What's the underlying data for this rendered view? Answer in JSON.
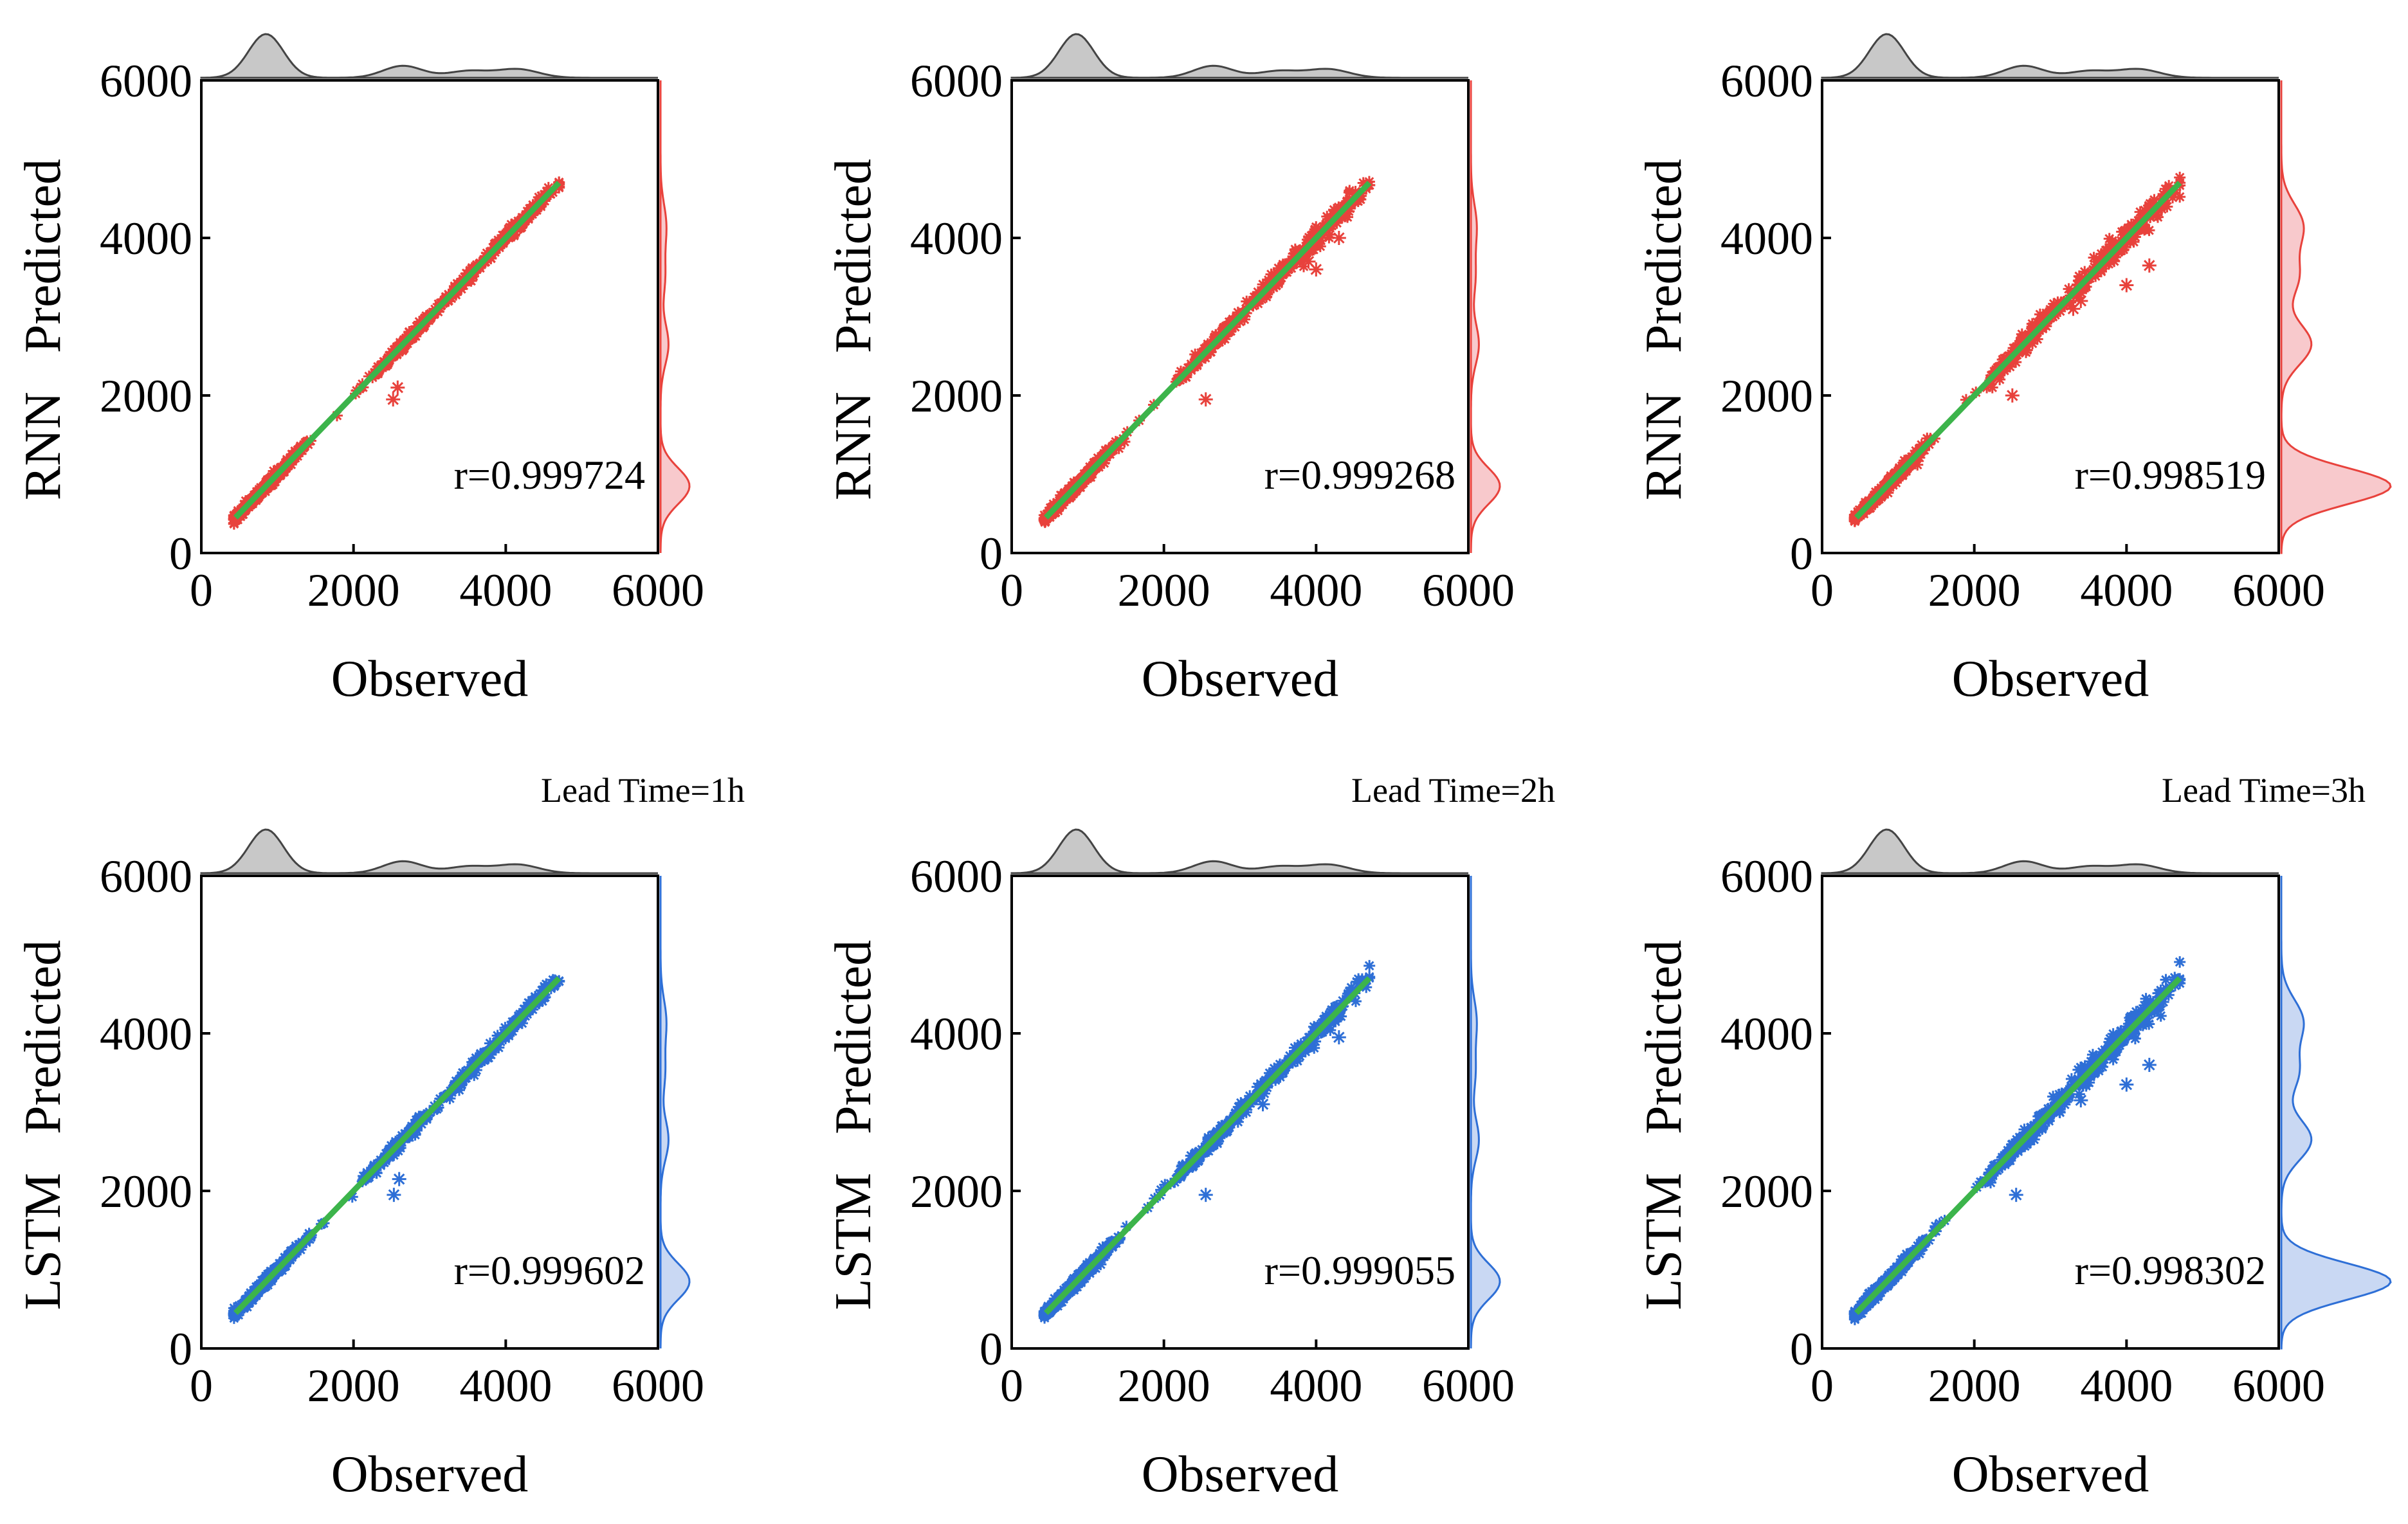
{
  "figure": {
    "rows": [
      {
        "model": "RNN",
        "point_color": "#e8423c",
        "density_color": "#e8423c",
        "density_fill": "#f8c9cc"
      },
      {
        "model": "LSTM",
        "point_color": "#2e6fd6",
        "density_color": "#2e6fd6",
        "density_fill": "#c9d8f3"
      }
    ],
    "fit_line_color": "#3cb44b",
    "top_density_color": "#444444",
    "top_density_fill": "#c8c8c8",
    "lead_time_labels": [
      "Lead Time=1h",
      "Lead Time=2h",
      "Lead Time=3h"
    ]
  },
  "chart_data": [
    {
      "type": "scatter",
      "row": 0,
      "col": 0,
      "model": "RNN",
      "ylabel_model": "RNN",
      "ylabel": "Predicted",
      "xlabel": "Observed",
      "xlim": [
        0,
        6000
      ],
      "ylim": [
        0,
        6000
      ],
      "xticks": [
        0,
        2000,
        4000,
        6000
      ],
      "yticks": [
        0,
        2000,
        4000,
        6000
      ],
      "annotation": "r=0.999724",
      "lead_label": "",
      "fit_line": [
        [
          450,
          450
        ],
        [
          4700,
          4700
        ]
      ],
      "observed_range": [
        450,
        4700
      ],
      "spread": 0.012,
      "outliers": [
        [
          2520,
          1950
        ],
        [
          2580,
          2100
        ]
      ]
    },
    {
      "type": "scatter",
      "row": 0,
      "col": 1,
      "model": "RNN",
      "ylabel_model": "RNN",
      "ylabel": "Predicted",
      "xlabel": "Observed",
      "xlim": [
        0,
        6000
      ],
      "ylim": [
        0,
        6000
      ],
      "xticks": [
        0,
        2000,
        4000,
        6000
      ],
      "yticks": [
        0,
        2000,
        4000,
        6000
      ],
      "annotation": "r=0.999268",
      "lead_label": "",
      "fit_line": [
        [
          450,
          450
        ],
        [
          4700,
          4700
        ]
      ],
      "observed_range": [
        450,
        4700
      ],
      "spread": 0.02,
      "outliers": [
        [
          2550,
          1950
        ],
        [
          4000,
          3600
        ],
        [
          4300,
          4000
        ],
        [
          3900,
          3700
        ]
      ]
    },
    {
      "type": "scatter",
      "row": 0,
      "col": 2,
      "model": "RNN",
      "ylabel_model": "RNN",
      "ylabel": "Predicted",
      "xlabel": "Observed",
      "xlim": [
        0,
        6000
      ],
      "ylim": [
        0,
        6000
      ],
      "xticks": [
        0,
        2000,
        4000,
        6000
      ],
      "yticks": [
        0,
        2000,
        4000,
        6000
      ],
      "annotation": "r=0.998519",
      "lead_label": "",
      "fit_line": [
        [
          450,
          450
        ],
        [
          4700,
          4700
        ]
      ],
      "observed_range": [
        450,
        4700
      ],
      "spread": 0.03,
      "outliers": [
        [
          2500,
          2000
        ],
        [
          4000,
          3400
        ],
        [
          4300,
          3650
        ],
        [
          3400,
          3200
        ],
        [
          3300,
          3100
        ]
      ]
    },
    {
      "type": "scatter",
      "row": 1,
      "col": 0,
      "model": "LSTM",
      "ylabel_model": "LSTM",
      "ylabel": "Predicted",
      "xlabel": "Observed",
      "xlim": [
        0,
        6000
      ],
      "ylim": [
        0,
        6000
      ],
      "xticks": [
        0,
        2000,
        4000,
        6000
      ],
      "yticks": [
        0,
        2000,
        4000,
        6000
      ],
      "annotation": "r=0.999602",
      "lead_label": "Lead Time=1h",
      "fit_line": [
        [
          450,
          450
        ],
        [
          4700,
          4700
        ]
      ],
      "observed_range": [
        450,
        4700
      ],
      "spread": 0.014,
      "outliers": [
        [
          2530,
          1950
        ],
        [
          2600,
          2150
        ]
      ]
    },
    {
      "type": "scatter",
      "row": 1,
      "col": 1,
      "model": "LSTM",
      "ylabel_model": "LSTM",
      "ylabel": "Predicted",
      "xlabel": "Observed",
      "xlim": [
        0,
        6000
      ],
      "ylim": [
        0,
        6000
      ],
      "xticks": [
        0,
        2000,
        4000,
        6000
      ],
      "yticks": [
        0,
        2000,
        4000,
        6000
      ],
      "annotation": "r=0.999055",
      "lead_label": "Lead Time=2h",
      "fit_line": [
        [
          450,
          450
        ],
        [
          4700,
          4700
        ]
      ],
      "observed_range": [
        450,
        4700
      ],
      "spread": 0.022,
      "outliers": [
        [
          2550,
          1950
        ],
        [
          4300,
          3950
        ],
        [
          3300,
          3100
        ]
      ]
    },
    {
      "type": "scatter",
      "row": 1,
      "col": 2,
      "model": "LSTM",
      "ylabel_model": "LSTM",
      "ylabel": "Predicted",
      "xlabel": "Observed",
      "xlim": [
        0,
        6000
      ],
      "ylim": [
        0,
        6000
      ],
      "xticks": [
        0,
        2000,
        4000,
        6000
      ],
      "yticks": [
        0,
        2000,
        4000,
        6000
      ],
      "annotation": "r=0.998302",
      "lead_label": "Lead Time=3h",
      "fit_line": [
        [
          450,
          450
        ],
        [
          4700,
          4700
        ]
      ],
      "observed_range": [
        450,
        4700
      ],
      "spread": 0.032,
      "outliers": [
        [
          2550,
          1950
        ],
        [
          4000,
          3350
        ],
        [
          4300,
          3600
        ],
        [
          3400,
          3150
        ]
      ]
    }
  ]
}
